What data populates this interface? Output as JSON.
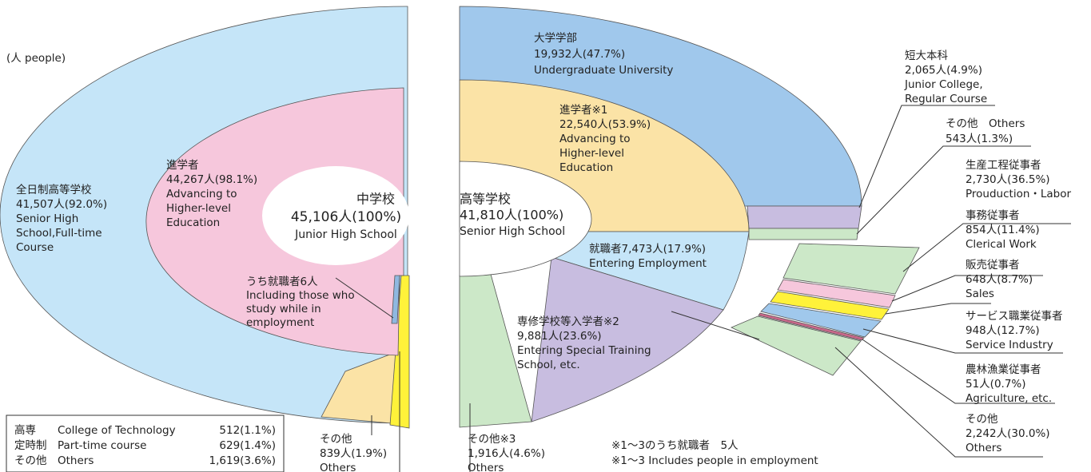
{
  "unit_note": "(人 people)",
  "junior_high": {
    "name": "中学校",
    "total": "45,106人(100%)",
    "name_en": "Junior High School"
  },
  "full_time": [
    "全日制高等学校",
    "41,507人(92.0%)",
    "Senior High",
    "School,Full-time",
    "Course"
  ],
  "advancing_jh": [
    "進学者",
    "44,267人(98.1%)",
    "Advancing to",
    "Higher-level",
    "Education"
  ],
  "employed_jh": [
    "うち就職者6人",
    "Including those who",
    "study while in",
    "employment"
  ],
  "others_jh": [
    "その他",
    "839人(1.9%)",
    "Others"
  ],
  "breakdown_table": {
    "rows": [
      [
        "高専",
        "College of Technology",
        "512(1.1%)"
      ],
      [
        "定時制",
        "Part-time course",
        "629(1.4%)"
      ],
      [
        "その他",
        "Others",
        "1,619(3.6%)"
      ]
    ]
  },
  "senior_high": {
    "name": "高等学校",
    "total": "41,810人(100%)",
    "name_en": "Senior High School"
  },
  "university": [
    "大学学部",
    "19,932人(47.7%)",
    "Undergraduate University"
  ],
  "junior_college": [
    "短大本科",
    "2,065人(4.9%)",
    "Junior College,",
    "Regular Course"
  ],
  "others_sh_top": [
    "その他　Others",
    "543人(1.3%)"
  ],
  "advancing_sh": [
    "進学者※1",
    "22,540人(53.9%)",
    "Advancing to",
    "Higher-level",
    "Education"
  ],
  "employment_sh": [
    "就職者7,473人(17.9%)",
    "Entering Employment"
  ],
  "special_training": [
    "専修学校等入学者※2",
    "9,881人(23.6%)",
    "Entering Special Training",
    "School, etc."
  ],
  "others_sh": [
    "その他※3",
    "1,916人(4.6%)",
    "Others"
  ],
  "footnotes": [
    "※1～3のうち就職者　5人",
    "※1～3 Includes people in employment"
  ],
  "occupations": [
    [
      "生産工程従事者",
      "2,730人(36.5%)",
      "Prouduction・Labor"
    ],
    [
      "事務従事者",
      "854人(11.4%)",
      "Clerical Work"
    ],
    [
      "販売従事者",
      "648人(8.7%)",
      "Sales"
    ],
    [
      "サービス職業従事者",
      "948人(12.7%)",
      "Service Industry"
    ],
    [
      "農林漁業従事者",
      "51人(0.7%)",
      "Agriculture, etc."
    ],
    [
      "その他",
      "2,242人(30.0%)",
      "Others"
    ]
  ]
}
